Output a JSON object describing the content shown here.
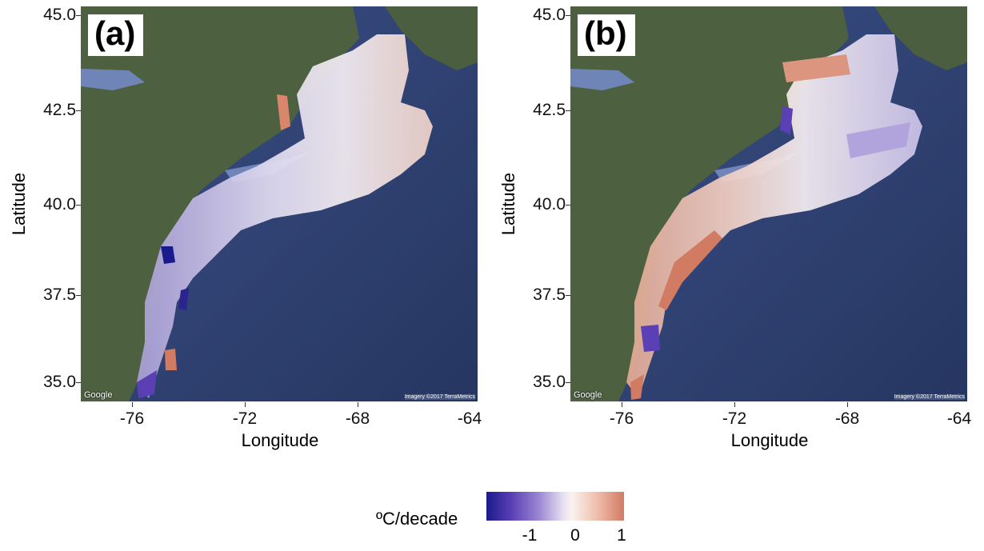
{
  "panels": [
    {
      "id": "a",
      "label": "(a)",
      "xlabel": "Longitude",
      "ylabel": "Latitude",
      "xticks": [
        "-76",
        "-72",
        "-68",
        "-64"
      ],
      "yticks": [
        "45.0",
        "42.5",
        "40.0",
        "37.5",
        "35.0"
      ],
      "google": "Google",
      "imagery": "Imagery ©2017 TerraMetrics"
    },
    {
      "id": "b",
      "label": "(b)",
      "xlabel": "Longitude",
      "ylabel": "Latitude",
      "xticks": [
        "-76",
        "-72",
        "-68",
        "-64"
      ],
      "yticks": [
        "45.0",
        "42.5",
        "40.0",
        "37.5",
        "35.0"
      ],
      "google": "Google",
      "imagery": "Imagery ©2017 TerraMetrics"
    }
  ],
  "legend": {
    "title": "ºC/decade",
    "ticks": [
      "-1",
      "0",
      "1"
    ],
    "colors": [
      "#1a1a8c",
      "#5a3fb5",
      "#9a86d2",
      "#e3dcf0",
      "#fbf3f0",
      "#efc0ad",
      "#d27b63"
    ]
  },
  "colors": {
    "ocean": "#2f4170",
    "land": "#4b5e3f",
    "water_light": "#6f85b8"
  }
}
